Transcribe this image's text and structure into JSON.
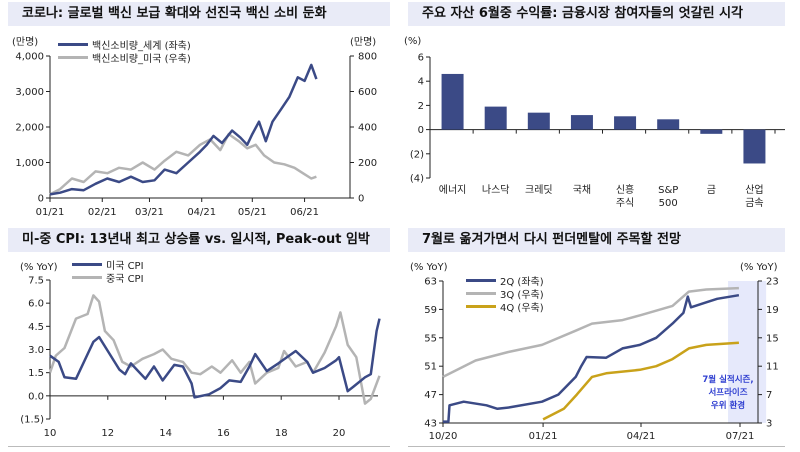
{
  "colors": {
    "navy": "#3b4a86",
    "gray": "#b4b4b4",
    "gold": "#c9a21a",
    "title_bg": "#e9ebf7",
    "shade": "#e6e9fb",
    "note": "#2f3fd0"
  },
  "chart_data": [
    {
      "type": "line",
      "title": "코로나: 글로벌 백신 보급 확대와 선진국 백신 소비 둔화",
      "ylabel_left": "(만명)",
      "ylabel_right": "(만명)",
      "ylim_left": [
        0,
        4000
      ],
      "ylim_right": [
        0,
        800
      ],
      "yticks_left": [
        "0",
        "1,000",
        "2,000",
        "3,000",
        "4,000"
      ],
      "yticks_right": [
        "0",
        "200",
        "400",
        "600",
        "800"
      ],
      "xlim": [
        "2021-01-01",
        "2021-06-30"
      ],
      "xticks": [
        [
          "2021-01-01",
          "01/21"
        ],
        [
          "2021-02-01",
          "02/21"
        ],
        [
          "2021-03-01",
          "03/21"
        ],
        [
          "2021-04-01",
          "04/21"
        ],
        [
          "2021-05-01",
          "05/21"
        ],
        [
          "2021-06-01",
          "06/21"
        ]
      ],
      "legend_placement": "top-left",
      "series": [
        {
          "name": "백신소비량_세계 (좌축)",
          "axis": "left",
          "color": "navy",
          "points": [
            [
              "2021-01-01",
              100
            ],
            [
              "2021-01-07",
              150
            ],
            [
              "2021-01-14",
              250
            ],
            [
              "2021-01-21",
              220
            ],
            [
              "2021-01-28",
              400
            ],
            [
              "2021-02-04",
              550
            ],
            [
              "2021-02-11",
              450
            ],
            [
              "2021-02-18",
              600
            ],
            [
              "2021-02-25",
              450
            ],
            [
              "2021-03-04",
              500
            ],
            [
              "2021-03-10",
              800
            ],
            [
              "2021-03-17",
              700
            ],
            [
              "2021-03-24",
              1000
            ],
            [
              "2021-03-31",
              1300
            ],
            [
              "2021-04-04",
              1500
            ],
            [
              "2021-04-08",
              1750
            ],
            [
              "2021-04-13",
              1550
            ],
            [
              "2021-04-19",
              1900
            ],
            [
              "2021-04-24",
              1700
            ],
            [
              "2021-04-28",
              1500
            ],
            [
              "2021-05-01",
              1800
            ],
            [
              "2021-05-05",
              2150
            ],
            [
              "2021-05-09",
              1600
            ],
            [
              "2021-05-13",
              2150
            ],
            [
              "2021-05-18",
              2500
            ],
            [
              "2021-05-23",
              2850
            ],
            [
              "2021-05-28",
              3400
            ],
            [
              "2021-06-01",
              3300
            ],
            [
              "2021-06-05",
              3750
            ],
            [
              "2021-06-08",
              3350
            ]
          ]
        },
        {
          "name": "백신소비량_미국 (우축)",
          "axis": "right",
          "color": "gray",
          "points": [
            [
              "2021-01-01",
              20
            ],
            [
              "2021-01-07",
              50
            ],
            [
              "2021-01-14",
              110
            ],
            [
              "2021-01-21",
              90
            ],
            [
              "2021-01-28",
              150
            ],
            [
              "2021-02-04",
              140
            ],
            [
              "2021-02-11",
              170
            ],
            [
              "2021-02-18",
              160
            ],
            [
              "2021-02-25",
              200
            ],
            [
              "2021-03-04",
              160
            ],
            [
              "2021-03-10",
              210
            ],
            [
              "2021-03-17",
              260
            ],
            [
              "2021-03-24",
              240
            ],
            [
              "2021-03-31",
              300
            ],
            [
              "2021-04-06",
              330
            ],
            [
              "2021-04-12",
              270
            ],
            [
              "2021-04-17",
              360
            ],
            [
              "2021-04-23",
              320
            ],
            [
              "2021-04-28",
              280
            ],
            [
              "2021-05-03",
              300
            ],
            [
              "2021-05-08",
              240
            ],
            [
              "2021-05-14",
              200
            ],
            [
              "2021-05-20",
              190
            ],
            [
              "2021-05-26",
              170
            ],
            [
              "2021-05-31",
              140
            ],
            [
              "2021-06-05",
              110
            ],
            [
              "2021-06-08",
              120
            ]
          ]
        }
      ]
    },
    {
      "type": "bar",
      "title": "주요 자산 6월중 수익률: 금융시장 참여자들의 엇갈린 시각",
      "ylabel": "(%)",
      "ylim": [
        -4,
        6
      ],
      "yticks": [
        "(4)",
        "(2)",
        "0",
        "2",
        "4",
        "6"
      ],
      "categories": [
        "에너지",
        "나스닥",
        "크레딧",
        "국채",
        "신흥\n주식",
        "S&P\n500",
        "금",
        "산업\n금속"
      ],
      "values": [
        4.6,
        1.9,
        1.4,
        1.2,
        1.1,
        0.85,
        -0.35,
        -2.8
      ],
      "color": "navy"
    },
    {
      "type": "line",
      "title": "미-중 CPI: 13년내 최고 상승률 vs. 일시적, Peak-out 임박",
      "ylabel": "(% YoY)",
      "ylim": [
        -1.5,
        7.5
      ],
      "yticks": [
        "(1.5)",
        "0.0",
        "1.5",
        "3.0",
        "4.5",
        "6.0",
        "7.5"
      ],
      "xlim": [
        2010,
        2021.8
      ],
      "xticks": [
        "10",
        "12",
        "14",
        "16",
        "18",
        "20"
      ],
      "legend_placement": "top-left",
      "series": [
        {
          "name": "미국 CPI",
          "color": "navy",
          "points": [
            [
              2010,
              2.6
            ],
            [
              2010.3,
              2.2
            ],
            [
              2010.5,
              1.2
            ],
            [
              2010.9,
              1.1
            ],
            [
              2011.3,
              2.7
            ],
            [
              2011.5,
              3.5
            ],
            [
              2011.7,
              3.8
            ],
            [
              2012.0,
              2.9
            ],
            [
              2012.4,
              1.7
            ],
            [
              2012.6,
              1.4
            ],
            [
              2012.8,
              2.1
            ],
            [
              2013.3,
              1.1
            ],
            [
              2013.6,
              1.9
            ],
            [
              2013.9,
              1.0
            ],
            [
              2014.3,
              2.0
            ],
            [
              2014.6,
              1.9
            ],
            [
              2014.9,
              0.8
            ],
            [
              2015.0,
              -0.1
            ],
            [
              2015.5,
              0.1
            ],
            [
              2015.9,
              0.5
            ],
            [
              2016.2,
              1.0
            ],
            [
              2016.6,
              0.9
            ],
            [
              2016.9,
              1.9
            ],
            [
              2017.1,
              2.7
            ],
            [
              2017.5,
              1.6
            ],
            [
              2017.9,
              2.1
            ],
            [
              2018.5,
              2.9
            ],
            [
              2018.9,
              2.2
            ],
            [
              2019.1,
              1.5
            ],
            [
              2019.5,
              1.8
            ],
            [
              2019.9,
              2.3
            ],
            [
              2020.0,
              2.5
            ],
            [
              2020.3,
              0.3
            ],
            [
              2020.5,
              0.6
            ],
            [
              2020.9,
              1.2
            ],
            [
              2021.1,
              1.4
            ],
            [
              2021.3,
              4.2
            ],
            [
              2021.4,
              5.0
            ]
          ]
        },
        {
          "name": "중국 CPI",
          "color": "gray",
          "points": [
            [
              2010,
              1.5
            ],
            [
              2010.2,
              2.6
            ],
            [
              2010.5,
              3.1
            ],
            [
              2010.9,
              5.0
            ],
            [
              2011.3,
              5.3
            ],
            [
              2011.5,
              6.5
            ],
            [
              2011.7,
              6.1
            ],
            [
              2011.9,
              4.2
            ],
            [
              2012.2,
              3.6
            ],
            [
              2012.5,
              2.2
            ],
            [
              2012.8,
              1.9
            ],
            [
              2013.2,
              2.4
            ],
            [
              2013.6,
              2.7
            ],
            [
              2013.9,
              3.0
            ],
            [
              2014.2,
              2.4
            ],
            [
              2014.6,
              2.2
            ],
            [
              2014.9,
              1.5
            ],
            [
              2015.2,
              1.4
            ],
            [
              2015.6,
              1.9
            ],
            [
              2015.9,
              1.5
            ],
            [
              2016.3,
              2.3
            ],
            [
              2016.6,
              1.5
            ],
            [
              2016.9,
              2.2
            ],
            [
              2017.1,
              0.8
            ],
            [
              2017.5,
              1.5
            ],
            [
              2017.9,
              1.8
            ],
            [
              2018.1,
              2.9
            ],
            [
              2018.5,
              1.9
            ],
            [
              2018.9,
              2.2
            ],
            [
              2019.1,
              1.5
            ],
            [
              2019.5,
              2.8
            ],
            [
              2019.9,
              4.5
            ],
            [
              2020.05,
              5.4
            ],
            [
              2020.3,
              3.3
            ],
            [
              2020.6,
              2.5
            ],
            [
              2020.9,
              -0.5
            ],
            [
              2021.1,
              -0.2
            ],
            [
              2021.4,
              1.3
            ]
          ]
        }
      ]
    },
    {
      "type": "line",
      "title": "7월로 옮겨가면서 다시 펀더멘탈에 주목할 전망",
      "ylabel_left": "(% YoY)",
      "ylabel_right": "(% YoY)",
      "ylim_left": [
        43,
        63
      ],
      "ylim_right": [
        3,
        23
      ],
      "yticks_left": [
        "43",
        "47",
        "51",
        "55",
        "59",
        "63"
      ],
      "yticks_right": [
        "3",
        "7",
        "11",
        "15",
        "19",
        "23"
      ],
      "xlim": [
        "2020-10-01",
        "2021-07-31"
      ],
      "xticks": [
        [
          "2020-10-01",
          "10/20"
        ],
        [
          "2021-01-01",
          "01/21"
        ],
        [
          "2021-04-01",
          "04/21"
        ],
        [
          "2021-07-01",
          "07/21"
        ]
      ],
      "shaded_range": [
        "2021-06-20",
        "2021-07-25"
      ],
      "annotation": [
        "7월 실적시즌,",
        "서프라이즈",
        "우위 환경"
      ],
      "legend_placement": "top-left",
      "series": [
        {
          "name": "2Q (좌축)",
          "axis": "left",
          "color": "navy",
          "points": [
            [
              "2020-10-01",
              43.2
            ],
            [
              "2020-10-06",
              43.2
            ],
            [
              "2020-10-07",
              45.5
            ],
            [
              "2020-10-20",
              46
            ],
            [
              "2020-11-10",
              45.5
            ],
            [
              "2020-11-20",
              45
            ],
            [
              "2020-12-01",
              45.2
            ],
            [
              "2020-12-31",
              46
            ],
            [
              "2021-01-15",
              47
            ],
            [
              "2021-01-31",
              49.5
            ],
            [
              "2021-02-05",
              51
            ],
            [
              "2021-02-10",
              52.3
            ],
            [
              "2021-02-28",
              52.2
            ],
            [
              "2021-03-15",
              53.5
            ],
            [
              "2021-03-31",
              54
            ],
            [
              "2021-04-15",
              55
            ],
            [
              "2021-04-30",
              57
            ],
            [
              "2021-05-10",
              58.5
            ],
            [
              "2021-05-14",
              60.8
            ],
            [
              "2021-05-17",
              59.3
            ],
            [
              "2021-05-31",
              60
            ],
            [
              "2021-06-10",
              60.5
            ],
            [
              "2021-06-30",
              61
            ]
          ]
        },
        {
          "name": "3Q (우축)",
          "axis": "right",
          "color": "gray",
          "points": [
            [
              "2020-10-01",
              9.5
            ],
            [
              "2020-10-31",
              11.8
            ],
            [
              "2020-11-30",
              13
            ],
            [
              "2020-12-31",
              14
            ],
            [
              "2021-01-31",
              16
            ],
            [
              "2021-02-15",
              17
            ],
            [
              "2021-03-15",
              17.5
            ],
            [
              "2021-04-01",
              18.2
            ],
            [
              "2021-04-30",
              19.5
            ],
            [
              "2021-05-15",
              21.5
            ],
            [
              "2021-05-31",
              21.8
            ],
            [
              "2021-06-30",
              22
            ]
          ]
        },
        {
          "name": "4Q (우축)",
          "axis": "right",
          "color": "gold",
          "points": [
            [
              "2021-01-01",
              3.5
            ],
            [
              "2021-01-20",
              5
            ],
            [
              "2021-02-01",
              7
            ],
            [
              "2021-02-15",
              9.5
            ],
            [
              "2021-02-28",
              10
            ],
            [
              "2021-03-31",
              10.5
            ],
            [
              "2021-04-15",
              11
            ],
            [
              "2021-04-30",
              12
            ],
            [
              "2021-05-15",
              13.5
            ],
            [
              "2021-05-31",
              14
            ],
            [
              "2021-06-30",
              14.3
            ]
          ]
        }
      ]
    }
  ]
}
